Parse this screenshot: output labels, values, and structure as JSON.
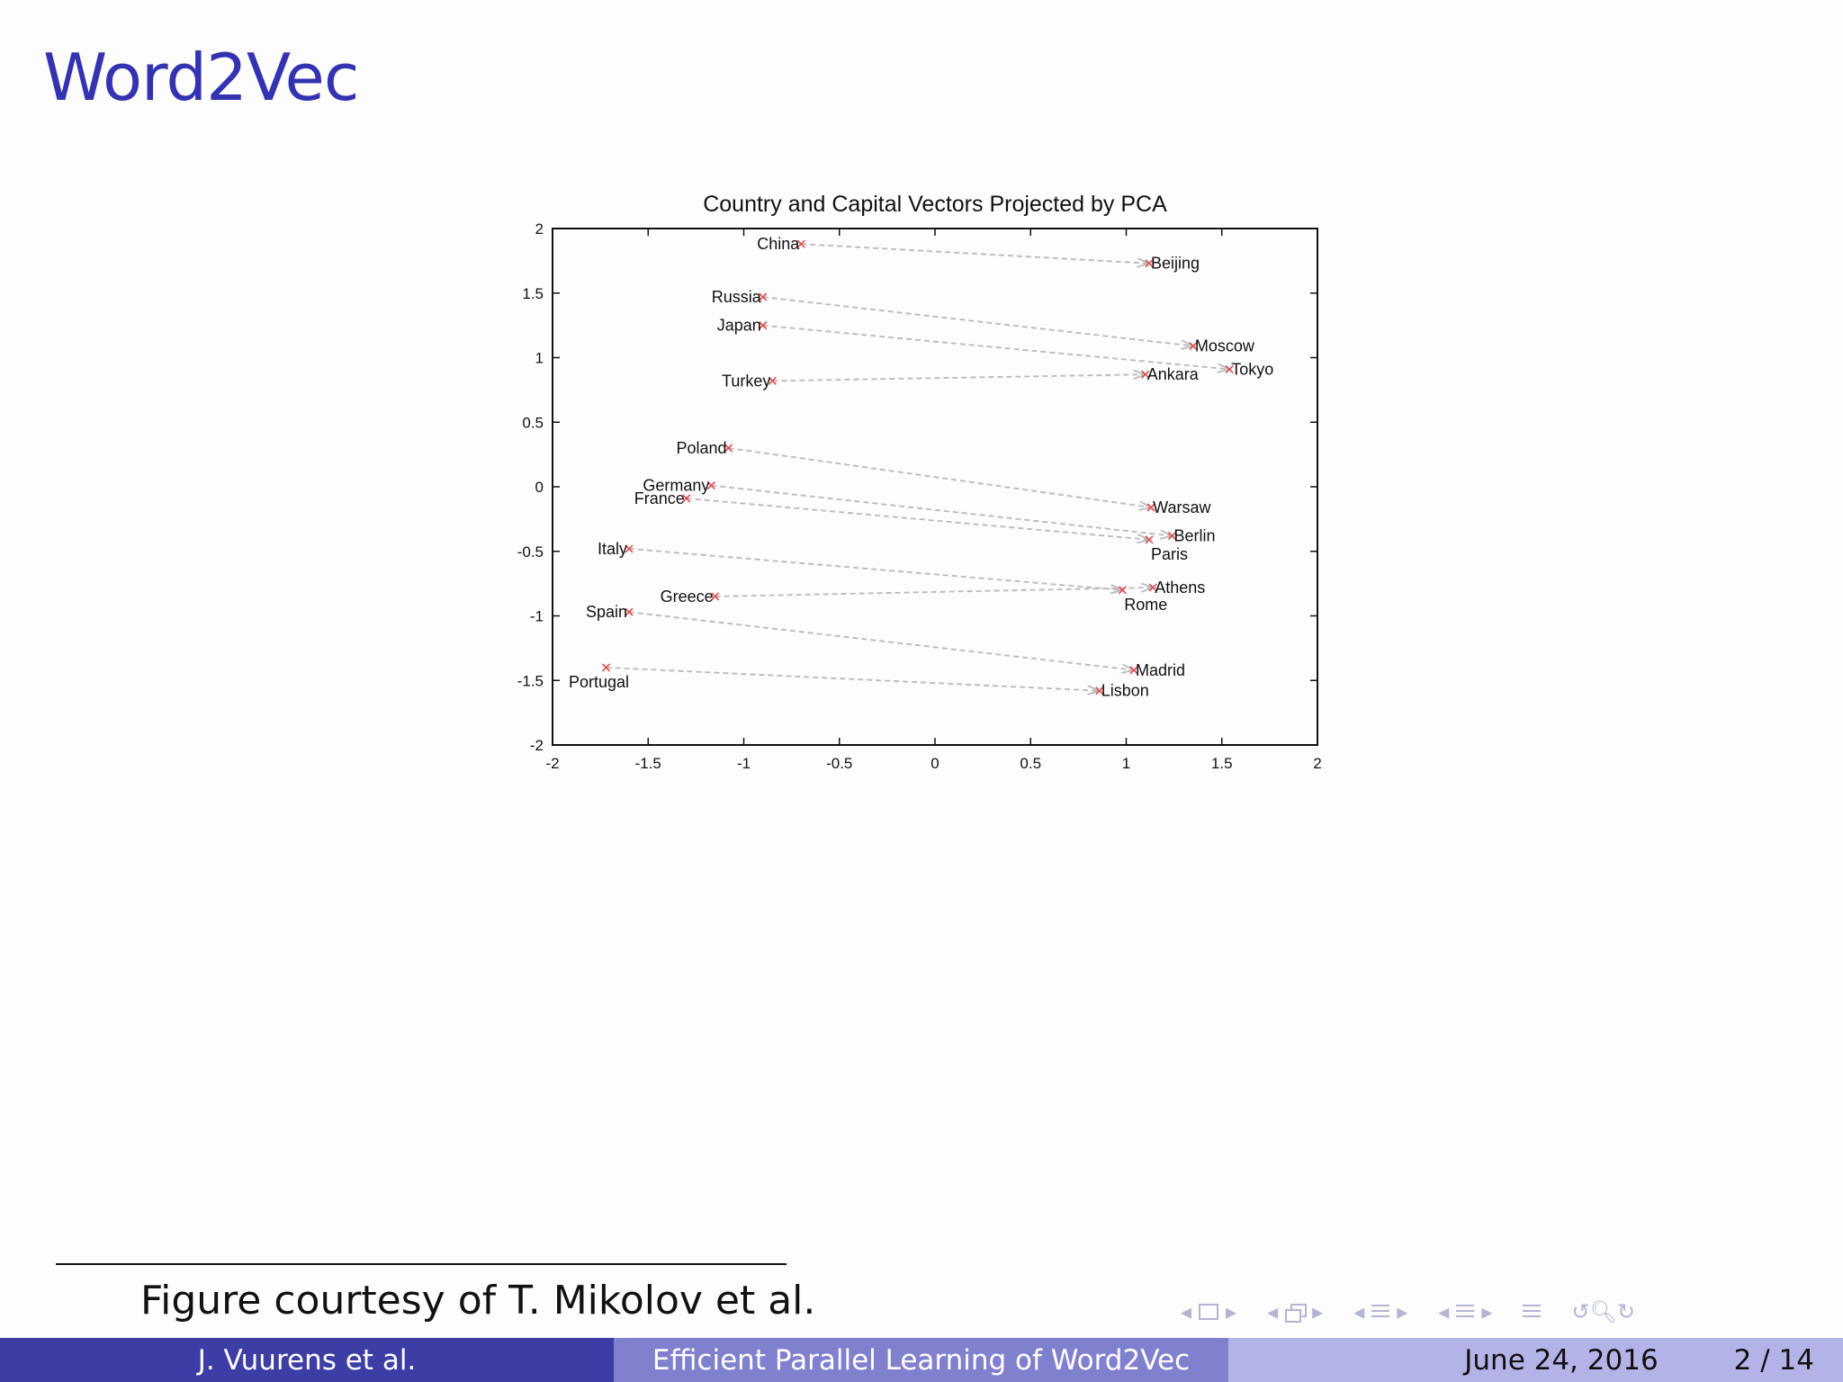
{
  "slide": {
    "title": "Word2Vec",
    "footnote": "Figure courtesy of T. Mikolov et al."
  },
  "footer": {
    "authors": "J. Vuurens et al.",
    "talk_title": "Efficient Parallel Learning of Word2Vec",
    "date": "June 24, 2016",
    "page": "2 / 14"
  },
  "navigation": {
    "icons": [
      "arrow-left-icon",
      "frame-icon",
      "arrow-right-icon",
      "arrow-left-icon",
      "frames-icon",
      "arrow-right-icon",
      "arrow-left-icon",
      "section-icon",
      "arrow-right-icon",
      "arrow-left-icon",
      "subsection-icon",
      "arrow-right-icon",
      "outline-icon",
      "search-icon"
    ],
    "color": "#b4b4d4"
  },
  "chart_data": {
    "type": "scatter",
    "title": "Country and Capital Vectors Projected by PCA",
    "xlabel": "",
    "ylabel": "",
    "xlim": [
      -2,
      2
    ],
    "ylim": [
      -2,
      2
    ],
    "xticks": [
      "-2",
      "-1.5",
      "-1",
      "-0.5",
      "0",
      "0.5",
      "1",
      "1.5",
      "2"
    ],
    "yticks": [
      "2",
      "1.5",
      "1",
      "0.5",
      "0",
      "-0.5",
      "-1",
      "-1.5",
      "-2"
    ],
    "grid": false,
    "colors": {
      "point": "#e24a4a",
      "arrow": "#b9b9b9",
      "text": "#111111"
    },
    "pairs": [
      {
        "country": "China",
        "country_xy": [
          -0.7,
          1.88
        ],
        "capital": "Beijing",
        "capital_xy": [
          1.12,
          1.73
        ]
      },
      {
        "country": "Russia",
        "country_xy": [
          -0.9,
          1.47
        ],
        "capital": "Moscow",
        "capital_xy": [
          1.35,
          1.09
        ]
      },
      {
        "country": "Japan",
        "country_xy": [
          -0.9,
          1.25
        ],
        "capital": "Tokyo",
        "capital_xy": [
          1.54,
          0.91
        ]
      },
      {
        "country": "Turkey",
        "country_xy": [
          -0.85,
          0.82
        ],
        "capital": "Ankara",
        "capital_xy": [
          1.1,
          0.87
        ]
      },
      {
        "country": "Poland",
        "country_xy": [
          -1.08,
          0.3
        ],
        "capital": "Warsaw",
        "capital_xy": [
          1.13,
          -0.16
        ]
      },
      {
        "country": "Germany",
        "country_xy": [
          -1.17,
          0.01
        ],
        "capital": "Berlin",
        "capital_xy": [
          1.24,
          -0.38
        ]
      },
      {
        "country": "France",
        "country_xy": [
          -1.3,
          -0.09
        ],
        "capital": "Paris",
        "capital_xy": [
          1.12,
          -0.41
        ]
      },
      {
        "country": "Italy",
        "country_xy": [
          -1.6,
          -0.48
        ],
        "capital": "Rome",
        "capital_xy": [
          0.98,
          -0.8
        ]
      },
      {
        "country": "Greece",
        "country_xy": [
          -1.15,
          -0.85
        ],
        "capital": "Athens",
        "capital_xy": [
          1.14,
          -0.78
        ]
      },
      {
        "country": "Spain",
        "country_xy": [
          -1.6,
          -0.97
        ],
        "capital": "Madrid",
        "capital_xy": [
          1.04,
          -1.42
        ]
      },
      {
        "country": "Portugal",
        "country_xy": [
          -1.72,
          -1.4
        ],
        "capital": "Lisbon",
        "capital_xy": [
          0.86,
          -1.58
        ]
      }
    ]
  }
}
